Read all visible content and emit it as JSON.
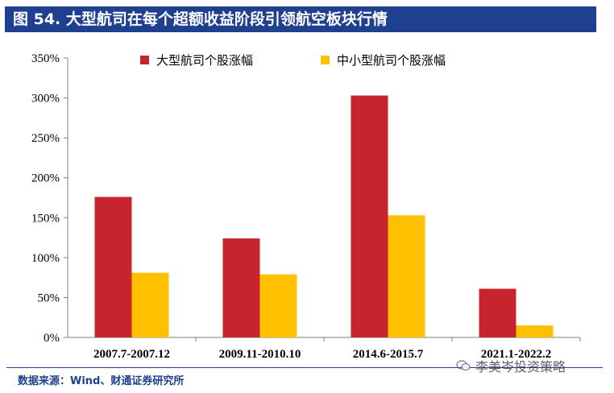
{
  "title": "图 54. 大型航司在每个超额收益阶段引领航空板块行情",
  "source": "数据来源：Wind、财通证券研究所",
  "watermark": "李美岑投资策略",
  "colors": {
    "title_bg": "#1f3f8f",
    "series_large": "#c8242d",
    "series_small": "#ffc000"
  },
  "chart_data": {
    "type": "bar",
    "categories": [
      "2007.7-2007.12",
      "2009.11-2010.10",
      "2014.6-2015.7",
      "2021.1-2022.2"
    ],
    "series": [
      {
        "name": "大型航司个股涨幅",
        "values": [
          176,
          124,
          303,
          61
        ],
        "color": "#c8242d"
      },
      {
        "name": "中小型航司个股涨幅",
        "values": [
          81,
          79,
          153,
          15
        ],
        "color": "#ffc000"
      }
    ],
    "ylim": [
      0,
      350
    ],
    "yticks": [
      0,
      50,
      100,
      150,
      200,
      250,
      300,
      350
    ],
    "ytick_labels": [
      "0%",
      "50%",
      "100%",
      "150%",
      "200%",
      "250%",
      "300%",
      "350%"
    ],
    "xlabel": "",
    "ylabel": "",
    "legend_position": "top"
  }
}
